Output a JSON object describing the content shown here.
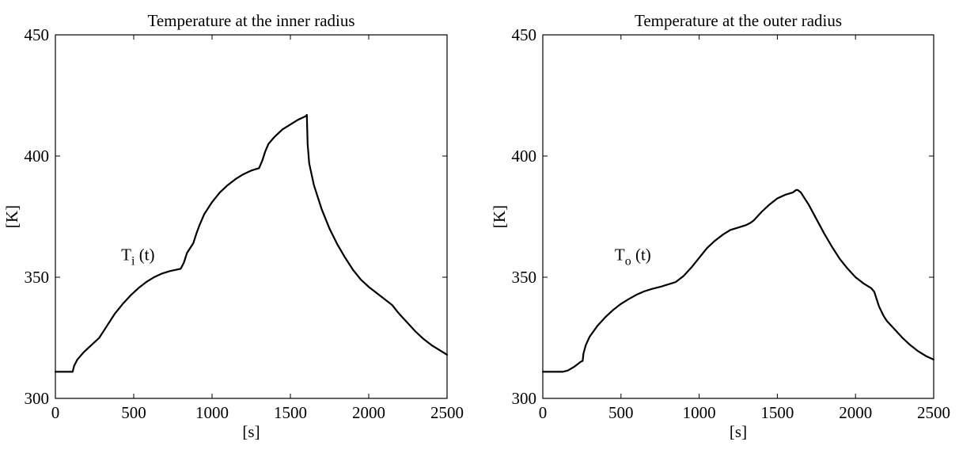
{
  "chart_data": [
    {
      "type": "line",
      "title": "Temperature at the inner radius",
      "xlabel": "[s]",
      "ylabel": "[K]",
      "xlim": [
        0,
        2500
      ],
      "ylim": [
        300,
        450
      ],
      "xticks": [
        0,
        500,
        1000,
        1500,
        2000,
        2500
      ],
      "yticks": [
        300,
        350,
        400,
        450
      ],
      "grid": false,
      "annotation": {
        "text": "T",
        "sub": "i",
        "suffix": " (t)",
        "x": 420,
        "y": 357
      },
      "series": [
        {
          "x": [
            0,
            110,
            120,
            140,
            180,
            230,
            280,
            330,
            380,
            430,
            480,
            530,
            580,
            630,
            680,
            730,
            800,
            820,
            840,
            860,
            880,
            900,
            920,
            950,
            1000,
            1050,
            1100,
            1150,
            1200,
            1250,
            1300,
            1320,
            1340,
            1360,
            1400,
            1450,
            1500,
            1550,
            1600,
            1605,
            1610,
            1620,
            1650,
            1700,
            1750,
            1800,
            1850,
            1900,
            1950,
            2000,
            2050,
            2100,
            2150,
            2180,
            2200,
            2250,
            2300,
            2350,
            2400,
            2450,
            2500
          ],
          "y": [
            311,
            311,
            313.5,
            316,
            319,
            322,
            325,
            330,
            335,
            339,
            342.5,
            345.5,
            348,
            350,
            351.5,
            352.5,
            353.5,
            356,
            360,
            362,
            364,
            368,
            371.5,
            376,
            381,
            385,
            388,
            390.5,
            392.5,
            394,
            395,
            398,
            402,
            405,
            408,
            411,
            413,
            415,
            416.5,
            417,
            405,
            397,
            388,
            378,
            370,
            363.5,
            358,
            353,
            349,
            346,
            343.5,
            341,
            338.5,
            336,
            334.5,
            331,
            327.5,
            324.5,
            322,
            320,
            318
          ]
        }
      ]
    },
    {
      "type": "line",
      "title": "Temperature at the outer radius",
      "xlabel": "[s]",
      "ylabel": "[K]",
      "xlim": [
        0,
        2500
      ],
      "ylim": [
        300,
        450
      ],
      "xticks": [
        0,
        500,
        1000,
        1500,
        2000,
        2500
      ],
      "yticks": [
        300,
        350,
        400,
        450
      ],
      "grid": false,
      "annotation": {
        "text": "T",
        "sub": "o",
        "suffix": " (t)",
        "x": 460,
        "y": 357
      },
      "series": [
        {
          "x": [
            0,
            130,
            160,
            200,
            240,
            255,
            260,
            275,
            300,
            350,
            400,
            450,
            500,
            550,
            600,
            650,
            700,
            750,
            800,
            850,
            900,
            950,
            1000,
            1050,
            1100,
            1150,
            1200,
            1250,
            1300,
            1330,
            1350,
            1400,
            1450,
            1500,
            1550,
            1600,
            1620,
            1630,
            1650,
            1700,
            1750,
            1800,
            1850,
            1900,
            1950,
            2000,
            2050,
            2100,
            2120,
            2150,
            2180,
            2200,
            2250,
            2300,
            2350,
            2400,
            2450,
            2500
          ],
          "y": [
            311,
            311,
            311.5,
            313,
            315,
            315.5,
            318.5,
            322,
            325.5,
            330,
            333.5,
            336.5,
            339,
            341,
            342.8,
            344.2,
            345.2,
            346,
            347,
            348,
            350.5,
            354,
            358,
            362,
            365,
            367.5,
            369.5,
            370.5,
            371.5,
            372.5,
            373.5,
            377,
            380,
            382.5,
            384,
            385,
            386,
            386,
            385,
            380,
            374,
            368,
            362.5,
            357.5,
            353.5,
            350,
            347.5,
            345.5,
            344,
            338,
            334,
            332,
            328.5,
            325,
            322,
            319.5,
            317.5,
            316
          ]
        }
      ]
    }
  ]
}
